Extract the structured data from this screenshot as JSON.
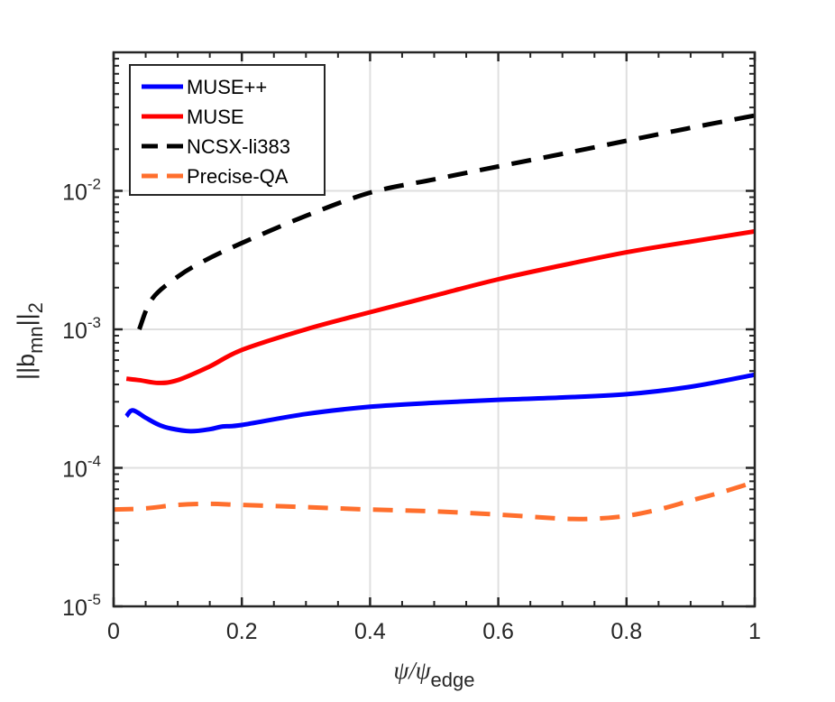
{
  "chart_data": {
    "type": "line",
    "title": "",
    "xlabel": "ψ/ψ_edge",
    "xlabel_main": "ψ/ψ",
    "xlabel_sub": "edge",
    "ylabel": "||b_mn||_2",
    "ylabel_main": "||b",
    "ylabel_sub1": "mn",
    "ylabel_mid": "||",
    "ylabel_sub2": "2",
    "xlim": [
      0,
      1
    ],
    "ylim": [
      1e-05,
      0.1
    ],
    "yscale": "log",
    "grid": true,
    "legend_position": "top-left",
    "xticks": [
      0,
      0.2,
      0.4,
      0.6,
      0.8,
      1
    ],
    "xtick_labels": [
      "0",
      "0.2",
      "0.4",
      "0.6",
      "0.8",
      "1"
    ],
    "yticks": [
      1e-05,
      0.0001,
      0.001,
      0.01
    ],
    "ytick_labels": [
      {
        "base": "10",
        "exp": "-5"
      },
      {
        "base": "10",
        "exp": "-4"
      },
      {
        "base": "10",
        "exp": "-3"
      },
      {
        "base": "10",
        "exp": "-2"
      }
    ],
    "series": [
      {
        "name": "MUSE++",
        "color": "#0000ff",
        "style": "solid",
        "x": [
          0.02,
          0.03,
          0.05,
          0.07,
          0.09,
          0.12,
          0.15,
          0.17,
          0.2,
          0.3,
          0.4,
          0.5,
          0.6,
          0.7,
          0.8,
          0.9,
          1.0
        ],
        "y": [
          0.000236,
          0.00026,
          0.00023,
          0.000205,
          0.000192,
          0.000184,
          0.00019,
          0.000199,
          0.000204,
          0.000245,
          0.000276,
          0.000295,
          0.00031,
          0.000322,
          0.00034,
          0.000385,
          0.00047
        ]
      },
      {
        "name": "MUSE",
        "color": "#ff0000",
        "style": "solid",
        "x": [
          0.02,
          0.04,
          0.07,
          0.1,
          0.15,
          0.2,
          0.3,
          0.4,
          0.5,
          0.6,
          0.7,
          0.8,
          0.9,
          1.0
        ],
        "y": [
          0.00044,
          0.00043,
          0.00041,
          0.00043,
          0.00054,
          0.00071,
          0.001,
          0.00133,
          0.00175,
          0.0023,
          0.0029,
          0.0036,
          0.0043,
          0.0051
        ]
      },
      {
        "name": "NCSX-li383",
        "color": "#000000",
        "style": "dashed",
        "x": [
          0.04,
          0.06,
          0.1,
          0.14,
          0.2,
          0.3,
          0.4,
          0.5,
          0.6,
          0.7,
          0.8,
          0.9,
          1.0
        ],
        "y": [
          0.001,
          0.00166,
          0.0024,
          0.0031,
          0.0042,
          0.0066,
          0.0097,
          0.0121,
          0.015,
          0.0185,
          0.023,
          0.0285,
          0.035
        ]
      },
      {
        "name": "Precise-QA",
        "color": "#ff6f2d",
        "style": "dashed",
        "x": [
          0.0,
          0.05,
          0.1,
          0.15,
          0.2,
          0.3,
          0.4,
          0.5,
          0.6,
          0.7,
          0.75,
          0.8,
          0.85,
          0.9,
          0.95,
          1.0
        ],
        "y": [
          5e-05,
          5.1e-05,
          5.4e-05,
          5.5e-05,
          5.4e-05,
          5.2e-05,
          5e-05,
          4.85e-05,
          4.6e-05,
          4.3e-05,
          4.3e-05,
          4.5e-05,
          5e-05,
          5.8e-05,
          6.7e-05,
          7.9e-05
        ]
      }
    ]
  }
}
